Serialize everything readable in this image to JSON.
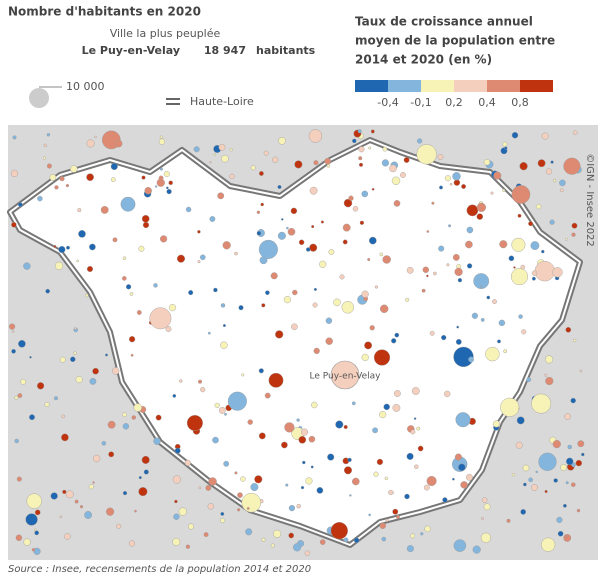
{
  "legend_size": {
    "title": "Nombre d'habitants en 2020",
    "city_caption": "Ville la plus peuplée",
    "city": "Le Puy-en-Velay",
    "population": "18 947",
    "unit": "habitants",
    "circle_label": "10 000",
    "boundary_label": "Haute-Loire"
  },
  "legend_color": {
    "title_lines": [
      "Taux de croissance annuel",
      "moyen de la population entre",
      "2014 et 2020 (en %)"
    ],
    "colors": [
      "#1f67b1",
      "#84b5dc",
      "#f7f2b6",
      "#f5cfbd",
      "#de8a72",
      "#c0330f"
    ],
    "labels": [
      "-0,4",
      "-0,1",
      "0,2",
      "0,4",
      "0,8"
    ]
  },
  "map": {
    "city_label": "Le Puy-en-Velay",
    "credit": "©IGN - Insee 2022"
  },
  "source": "Source : Insee, recensements de la population 2014 et 2020"
}
